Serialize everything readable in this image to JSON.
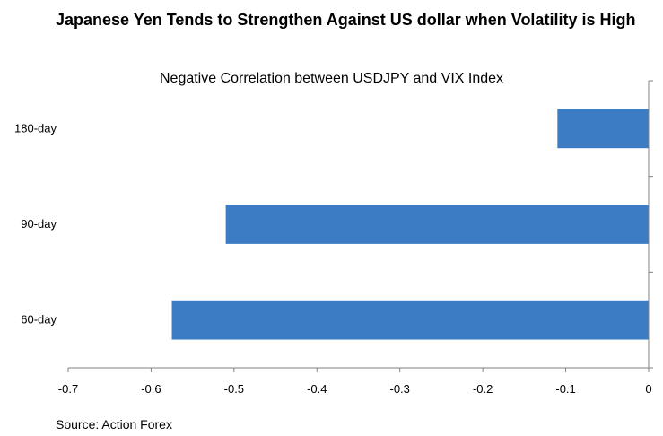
{
  "title": "Japanese Yen Tends to Strengthen Against US dollar when Volatility is High",
  "source": "Source: Action Forex",
  "colors": {
    "bar": "#3B7CC4",
    "axis": "#808080"
  },
  "chart_data": {
    "type": "bar",
    "orientation": "horizontal",
    "title": "Negative Correlation between USDJPY and VIX Index",
    "categories": [
      "180-day",
      "90-day",
      "60-day"
    ],
    "values": [
      -0.11,
      -0.51,
      -0.575
    ],
    "xlim": [
      -0.7,
      0
    ],
    "xticks": [
      -0.7,
      -0.6,
      -0.5,
      -0.4,
      -0.3,
      -0.2,
      -0.1,
      0
    ],
    "xtick_labels": [
      "-0.7",
      "-0.6",
      "-0.5",
      "-0.4",
      "-0.3",
      "-0.2",
      "-0.1",
      "0"
    ],
    "xlabel": "",
    "ylabel": "",
    "grid": false,
    "legend": false
  }
}
